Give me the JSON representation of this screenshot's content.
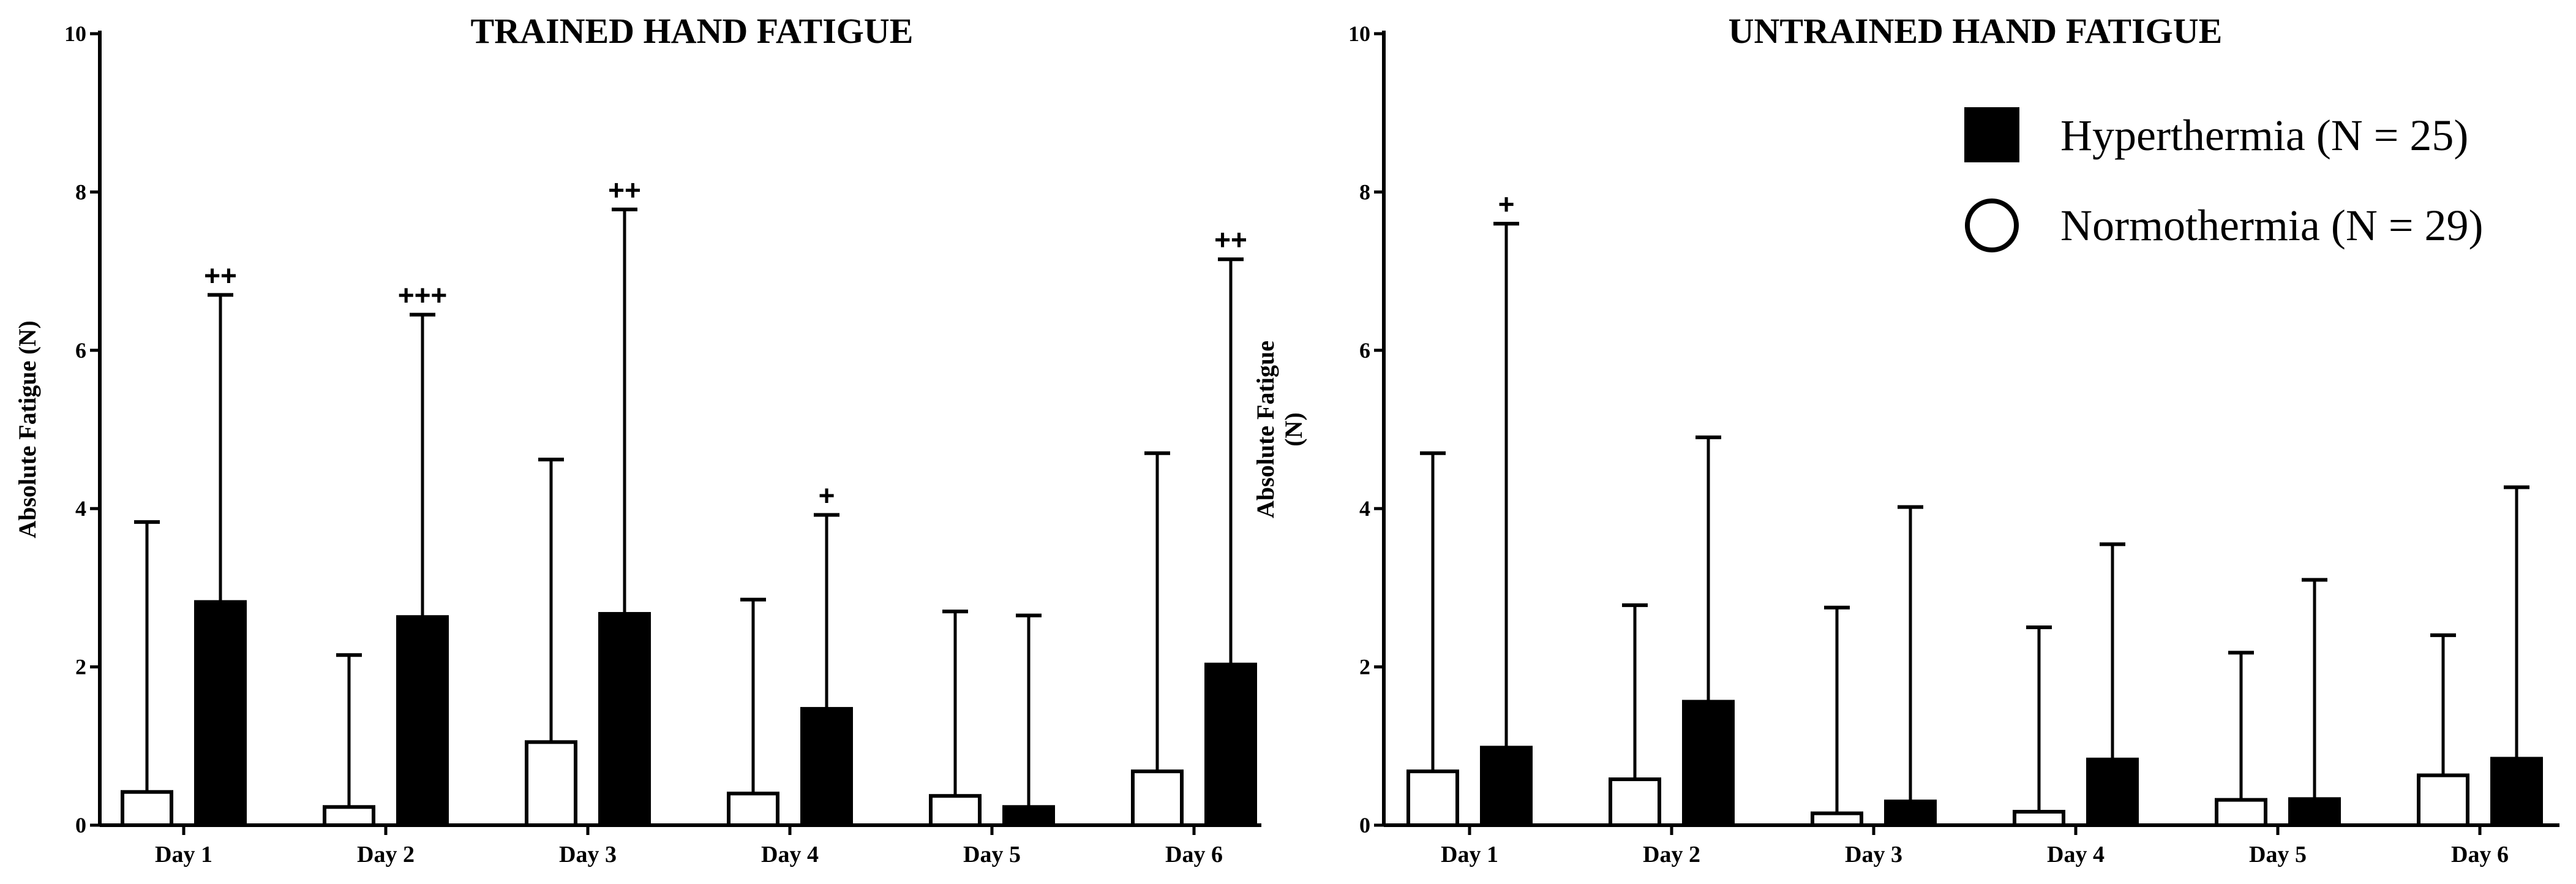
{
  "chart_data": [
    {
      "type": "bar",
      "title": "TRAINED HAND FATIGUE",
      "ylabel_lines": [
        "Absolute Fatigue (N)"
      ],
      "ylim": [
        0,
        10
      ],
      "yticks": [
        0,
        2,
        4,
        6,
        8,
        10
      ],
      "categories": [
        "Day 1",
        "Day 2",
        "Day 3",
        "Day 4",
        "Day 5",
        "Day 6"
      ],
      "series": [
        {
          "key": "normothermia",
          "values": [
            0.42,
            0.23,
            1.05,
            0.4,
            0.37,
            0.68
          ],
          "error_upper": [
            3.83,
            2.15,
            4.62,
            2.85,
            2.7,
            4.7
          ]
        },
        {
          "key": "hyperthermia",
          "values": [
            2.82,
            2.63,
            2.67,
            1.47,
            0.23,
            2.03
          ],
          "error_upper": [
            6.7,
            6.45,
            7.78,
            3.92,
            2.65,
            7.15
          ]
        }
      ],
      "annotations": [
        "++",
        "+++",
        "++",
        "+",
        "",
        "++"
      ]
    },
    {
      "type": "bar",
      "title": "UNTRAINED HAND FATIGUE",
      "ylabel_lines": [
        "Absolute Fatigue",
        "(N)"
      ],
      "ylim": [
        0,
        10
      ],
      "yticks": [
        0,
        2,
        4,
        6,
        8,
        10
      ],
      "categories": [
        "Day 1",
        "Day 2",
        "Day 3",
        "Day 4",
        "Day 5",
        "Day 6"
      ],
      "series": [
        {
          "key": "normothermia",
          "values": [
            0.68,
            0.58,
            0.15,
            0.17,
            0.32,
            0.63
          ],
          "error_upper": [
            4.7,
            2.78,
            2.75,
            2.5,
            2.18,
            2.4
          ]
        },
        {
          "key": "hyperthermia",
          "values": [
            0.98,
            1.56,
            0.3,
            0.83,
            0.33,
            0.84
          ],
          "error_upper": [
            7.6,
            4.9,
            4.02,
            3.55,
            3.1,
            4.27
          ]
        }
      ],
      "annotations": [
        "+",
        "",
        "",
        "",
        "",
        ""
      ]
    }
  ],
  "legend": {
    "placement": "top-right of right panel",
    "items": [
      {
        "key": "hyperthermia",
        "label": "Hyperthermia (N = 25)",
        "color": "#000000"
      },
      {
        "key": "normothermia",
        "label": "Normothermia (N = 29)",
        "color": "#ffffff"
      }
    ]
  }
}
